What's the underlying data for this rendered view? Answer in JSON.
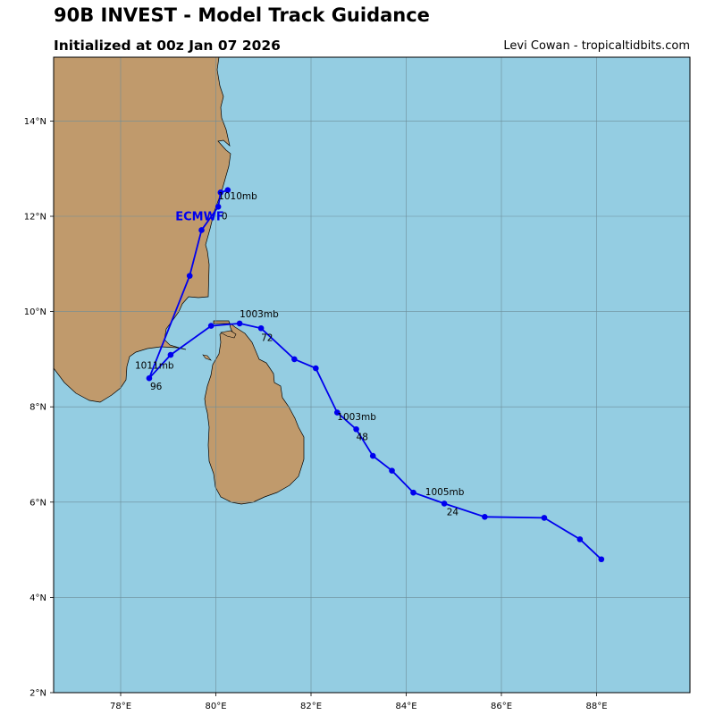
{
  "header": {
    "title": "90B INVEST - Model Track Guidance",
    "subtitle": "Initialized at 00z Jan 07 2026",
    "credit": "Levi Cowan - tropicaltidbits.com"
  },
  "colors": {
    "ocean": "#94cde2",
    "land": "#c09a6c",
    "track": "#0000ee",
    "grid": "#6d8d99"
  },
  "map": {
    "lon_range": [
      76.6,
      100.0
    ],
    "lat_range": [
      2.0,
      15.3
    ],
    "lon_ticks": [
      {
        "value": 78,
        "label": "78°E"
      },
      {
        "value": 80,
        "label": "80°E"
      },
      {
        "value": 82,
        "label": "82°E"
      },
      {
        "value": 84,
        "label": "84°E"
      },
      {
        "value": 86,
        "label": "86°E"
      },
      {
        "value": 88,
        "label": "88°E"
      }
    ],
    "lat_ticks": [
      {
        "value": 2,
        "label": "2°N"
      },
      {
        "value": 4,
        "label": "4°N"
      },
      {
        "value": 6,
        "label": "6°N"
      },
      {
        "value": 8,
        "label": "8°N"
      },
      {
        "value": 10,
        "label": "10°N"
      },
      {
        "value": 12,
        "label": "12°N"
      },
      {
        "value": 14,
        "label": "14°N"
      }
    ],
    "grid": true
  },
  "chart_data": {
    "type": "scatter",
    "series": [
      {
        "name": "ECMWF",
        "marker": "circle",
        "points": [
          {
            "lon": 88.1,
            "lat": 4.8
          },
          {
            "lon": 87.65,
            "lat": 5.22
          },
          {
            "lon": 86.9,
            "lat": 5.67
          },
          {
            "lon": 85.65,
            "lat": 5.69
          },
          {
            "lon": 84.8,
            "lat": 5.97
          },
          {
            "lon": 84.15,
            "lat": 6.2
          },
          {
            "lon": 83.7,
            "lat": 6.66
          },
          {
            "lon": 83.3,
            "lat": 6.97
          },
          {
            "lon": 82.95,
            "lat": 7.53
          },
          {
            "lon": 82.55,
            "lat": 7.88
          },
          {
            "lon": 82.1,
            "lat": 8.81
          },
          {
            "lon": 81.65,
            "lat": 9.0
          },
          {
            "lon": 80.95,
            "lat": 9.65
          },
          {
            "lon": 80.5,
            "lat": 9.75
          },
          {
            "lon": 79.9,
            "lat": 9.7
          },
          {
            "lon": 79.05,
            "lat": 9.09
          },
          {
            "lon": 78.6,
            "lat": 8.6
          },
          {
            "lon": 79.45,
            "lat": 10.75
          },
          {
            "lon": 79.7,
            "lat": 11.71
          },
          {
            "lon": 80.05,
            "lat": 12.2
          },
          {
            "lon": 80.1,
            "lat": 12.5
          },
          {
            "lon": 80.25,
            "lat": 12.55
          }
        ],
        "label": {
          "text": "ECMWF",
          "lon": 79.15,
          "lat": 11.92
        }
      }
    ],
    "annotations": [
      {
        "text": "1005mb",
        "lon": 84.4,
        "lat": 6.15
      },
      {
        "text": "24",
        "lon": 84.85,
        "lat": 5.72
      },
      {
        "text": "1003mb",
        "lon": 82.55,
        "lat": 7.72
      },
      {
        "text": "48",
        "lon": 82.95,
        "lat": 7.3
      },
      {
        "text": "1003mb",
        "lon": 80.5,
        "lat": 9.88
      },
      {
        "text": "72",
        "lon": 80.95,
        "lat": 9.38
      },
      {
        "text": "1011mb",
        "lon": 78.3,
        "lat": 8.8
      },
      {
        "text": "96",
        "lon": 78.62,
        "lat": 8.36
      },
      {
        "text": "1010mb",
        "lon": 80.05,
        "lat": 12.36
      },
      {
        "text": "0",
        "lon": 80.12,
        "lat": 11.93
      }
    ]
  }
}
